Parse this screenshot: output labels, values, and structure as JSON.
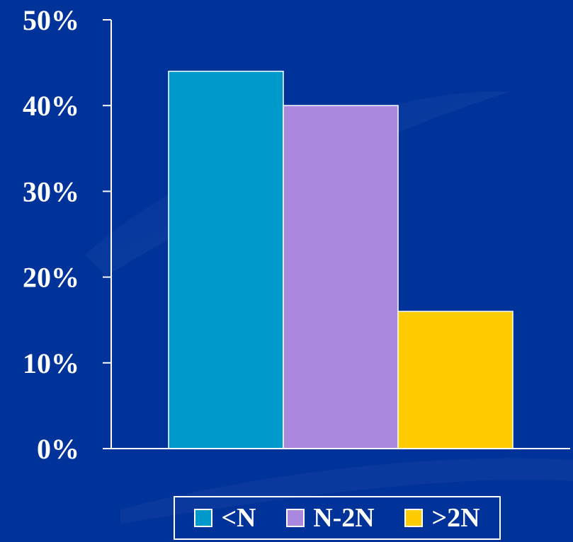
{
  "chart_data": {
    "type": "bar",
    "categories": [
      ""
    ],
    "series": [
      {
        "name": "<N",
        "values": [
          44
        ],
        "color": "#0099cc"
      },
      {
        "name": "N-2N",
        "values": [
          40
        ],
        "color": "#aa88dd"
      },
      {
        "name": ">2N",
        "values": [
          16
        ],
        "color": "#ffcc00"
      }
    ],
    "ylim": [
      0,
      50
    ],
    "yticks": [
      0,
      10,
      20,
      30,
      40,
      50
    ],
    "ytick_labels": [
      "0%",
      "10%",
      "20%",
      "30%",
      "40%",
      "50%"
    ],
    "unit": "%",
    "title": "",
    "xlabel": "",
    "ylabel": "",
    "grid": false,
    "legend_position": "bottom"
  },
  "colors": {
    "background": "#003399",
    "axis": "#ffffff",
    "bar_outline": "#ffffff"
  }
}
